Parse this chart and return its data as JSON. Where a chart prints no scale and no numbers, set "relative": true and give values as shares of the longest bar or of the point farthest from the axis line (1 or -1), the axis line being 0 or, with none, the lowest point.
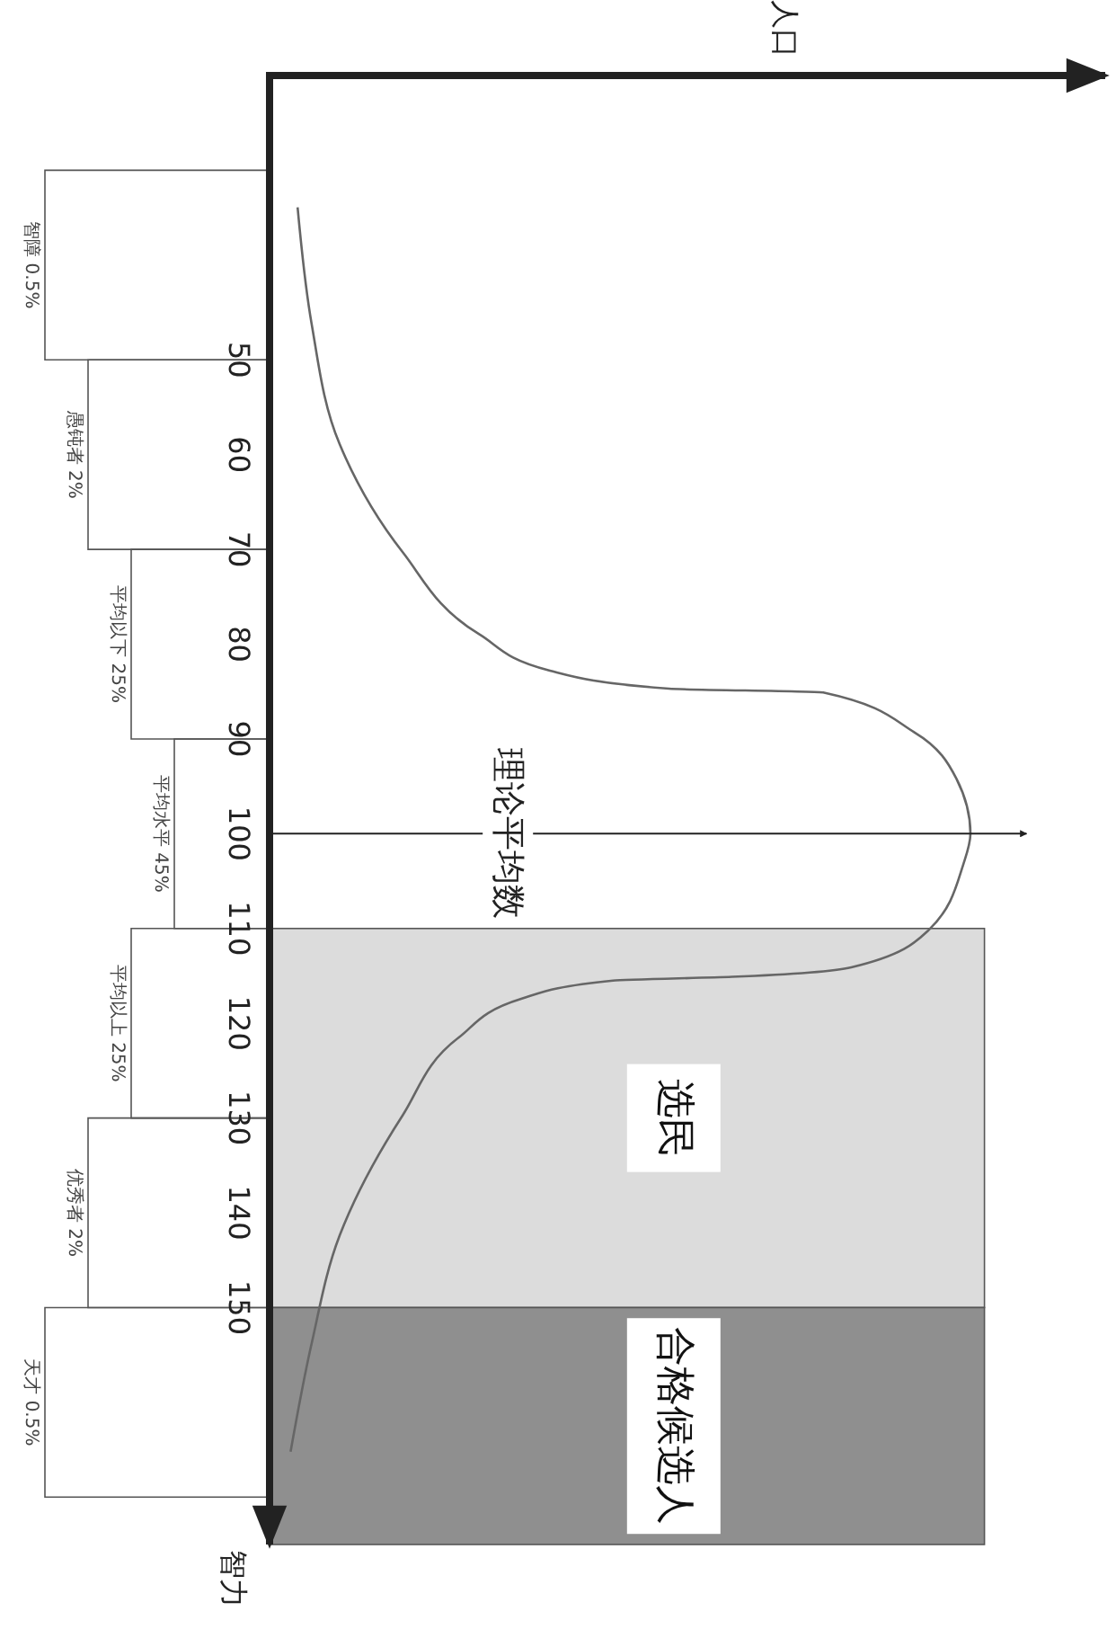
{
  "chart_data": {
    "type": "line",
    "orientation": "horizontal",
    "ylabel": "智力",
    "x2label": "人口",
    "relative": true,
    "ylim": [
      175,
      20
    ],
    "yticks": [
      50,
      60,
      70,
      80,
      90,
      100,
      110,
      120,
      130,
      140,
      150
    ],
    "series": [
      {
        "color": "#666666",
        "x": [
          33.9,
          46.2,
          58.9,
          70.3,
          79,
          82.8,
          84.7,
          85.1,
          89.3,
          94.2,
          100,
          103.2,
          110.2,
          114.1,
          115.1,
          115.5,
          117.4,
          121.5,
          129.7,
          142.4,
          153.8,
          165.2
        ],
        "values": [
          0.04,
          0.06,
          0.1,
          0.19,
          0.3,
          0.4,
          0.57,
          0.79,
          0.92,
          0.98,
          1,
          0.99,
          0.94,
          0.83,
          0.66,
          0.49,
          0.36,
          0.27,
          0.19,
          0.1,
          0.06,
          0.03
        ]
      }
    ],
    "ref_lines": [
      {
        "axis": "y",
        "value": 100,
        "label": "理论平均数"
      }
    ],
    "bands": [
      {
        "axis": "y",
        "from": 110,
        "to": 150,
        "label": "选民",
        "color": "#dcdcdc"
      },
      {
        "axis": "y",
        "from": 150,
        "to": 175,
        "label": "合格候选人",
        "color": "#8f8f8f"
      }
    ],
    "annotations": [
      "智障 0.5%",
      "愚钝者 2%",
      "平均以下 25%",
      "平均水平 45%",
      "平均以上 25%",
      "优秀者 2%",
      "天才 0.5%"
    ]
  }
}
